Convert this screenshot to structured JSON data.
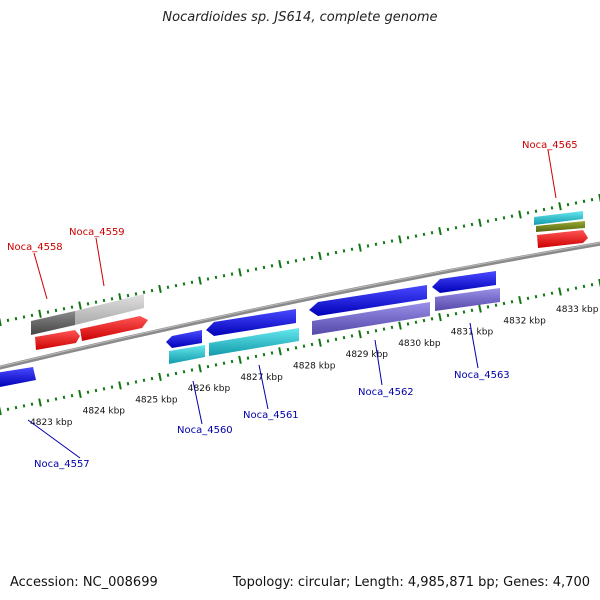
{
  "title": "Nocardioides sp. JS614, complete genome",
  "footer": {
    "accession": "Accession: NC_008699",
    "summary": "Topology: circular; Length: 4,985,871 bp; Genes: 4,700"
  },
  "colors": {
    "forward_label": "#cc0000",
    "reverse_label": "#0000aa",
    "tick": "#117711",
    "backbone": "#888888"
  },
  "ticks": [
    {
      "kbp": 4823,
      "label": "4823 kbp"
    },
    {
      "kbp": 4824,
      "label": "4824 kbp"
    },
    {
      "kbp": 4825,
      "label": "4825 kbp"
    },
    {
      "kbp": 4826,
      "label": "4826 kbp"
    },
    {
      "kbp": 4827,
      "label": "4827 kbp"
    },
    {
      "kbp": 4828,
      "label": "4828 kbp"
    },
    {
      "kbp": 4829,
      "label": "4829 kbp"
    },
    {
      "kbp": 4830,
      "label": "4830 kbp"
    },
    {
      "kbp": 4831,
      "label": "4831 kbp"
    },
    {
      "kbp": 4832,
      "label": "4832 kbp"
    },
    {
      "kbp": 4833,
      "label": "4833 kbp"
    }
  ],
  "gene_labels": [
    {
      "name": "Noca_4558",
      "strand": "forward"
    },
    {
      "name": "Noca_4559",
      "strand": "forward"
    },
    {
      "name": "Noca_4565",
      "strand": "forward"
    },
    {
      "name": "Noca_4557",
      "strand": "reverse"
    },
    {
      "name": "Noca_4560",
      "strand": "reverse"
    },
    {
      "name": "Noca_4561",
      "strand": "reverse"
    },
    {
      "name": "Noca_4562",
      "strand": "reverse"
    },
    {
      "name": "Noca_4563",
      "strand": "reverse"
    }
  ]
}
